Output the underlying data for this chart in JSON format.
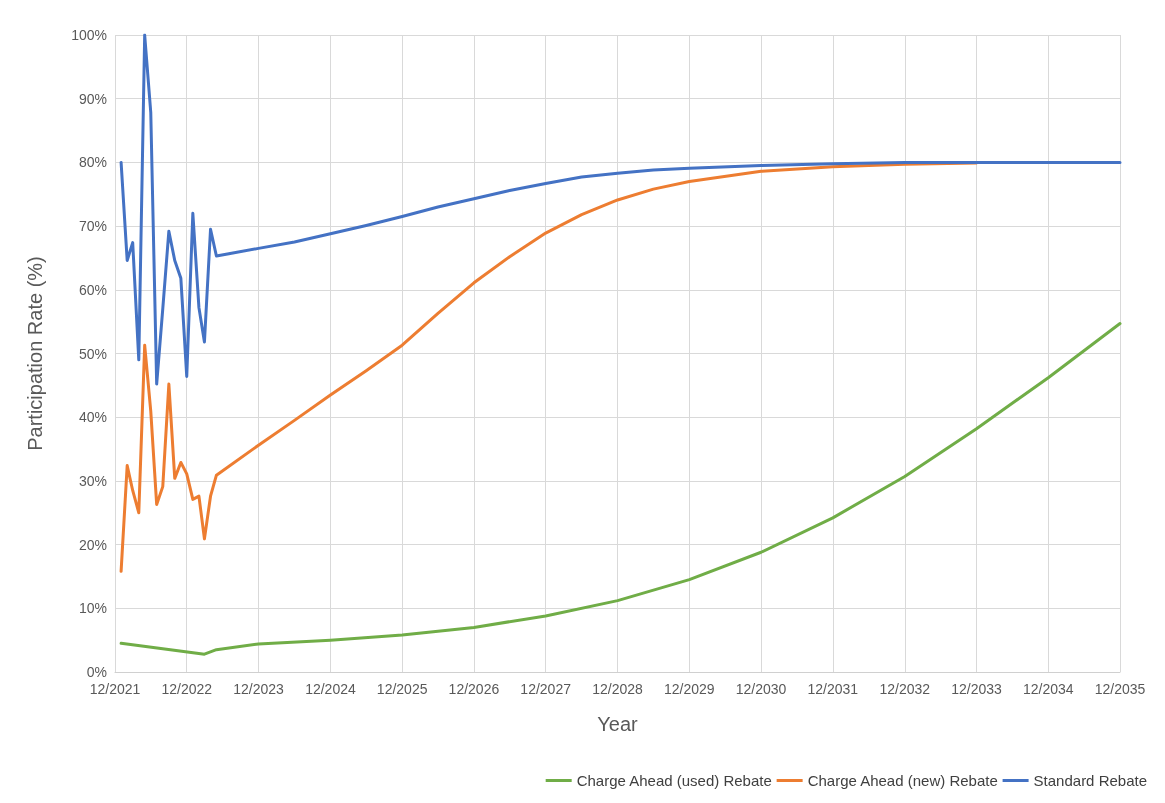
{
  "chart_data": {
    "type": "line",
    "xlabel": "Year",
    "ylabel": "Participation Rate (%)",
    "x": [
      "2022-01",
      "2022-02",
      "2022-03",
      "2022-04",
      "2022-05",
      "2022-06",
      "2022-07",
      "2022-08",
      "2022-09",
      "2022-10",
      "2022-11",
      "2022-12",
      "2023-01",
      "2023-02",
      "2023-03",
      "2023-04",
      "2023-05",
      "2023-12",
      "2024-06",
      "2024-12",
      "2025-06",
      "2025-12",
      "2026-06",
      "2026-12",
      "2027-06",
      "2027-12",
      "2028-06",
      "2028-12",
      "2029-06",
      "2029-12",
      "2030-12",
      "2031-12",
      "2032-12",
      "2033-12",
      "2034-12",
      "2035-12"
    ],
    "series": [
      {
        "name": "Charge Ahead (used) Rebate",
        "color": "#70ad47",
        "x": [
          "2022-01",
          "2023-03",
          "2023-05",
          "2023-12",
          "2024-12",
          "2025-12",
          "2026-12",
          "2027-12",
          "2028-12",
          "2029-12",
          "2030-12",
          "2031-12",
          "2032-12",
          "2033-12",
          "2034-12",
          "2035-12"
        ],
        "values": [
          4.5,
          2.8,
          3.5,
          4.4,
          5.0,
          5.8,
          7.0,
          8.8,
          11.2,
          14.5,
          18.8,
          24.2,
          30.7,
          38.2,
          46.2,
          54.7
        ]
      },
      {
        "name": "Charge Ahead (new) Rebate",
        "color": "#ed7d31",
        "values": [
          15.8,
          32.4,
          28.5,
          25,
          51.3,
          40.9,
          26.3,
          29.1,
          45.2,
          30.4,
          32.9,
          31.1,
          27.1,
          27.6,
          20.9,
          27.6,
          30.9,
          35.6,
          39.5,
          43.5,
          47.3,
          51.3,
          56.3,
          61.1,
          65.2,
          68.9,
          71.8,
          74.1,
          75.8,
          77,
          78.6,
          79.3,
          79.7,
          79.9,
          null,
          null
        ]
      },
      {
        "name": "Standard Rebate",
        "color": "#4472c4",
        "values": [
          80,
          64.6,
          67.4,
          49,
          100,
          87.8,
          45.2,
          57,
          69.2,
          64.6,
          61.8,
          46.4,
          72,
          57.2,
          51.8,
          69.5,
          65.3,
          66.5,
          67.5,
          68.8,
          70.1,
          71.5,
          73,
          74.3,
          75.6,
          76.7,
          77.7,
          78.3,
          78.8,
          79.1,
          79.5,
          79.8,
          80,
          80,
          80,
          80
        ]
      }
    ],
    "xlim": [
      "2021-12",
      "2035-12"
    ],
    "xticks": [
      {
        "value": "2021-12",
        "label": "12/2021"
      },
      {
        "value": "2022-12",
        "label": "12/2022"
      },
      {
        "value": "2023-12",
        "label": "12/2023"
      },
      {
        "value": "2024-12",
        "label": "12/2024"
      },
      {
        "value": "2025-12",
        "label": "12/2025"
      },
      {
        "value": "2026-12",
        "label": "12/2026"
      },
      {
        "value": "2027-12",
        "label": "12/2027"
      },
      {
        "value": "2028-12",
        "label": "12/2028"
      },
      {
        "value": "2029-12",
        "label": "12/2029"
      },
      {
        "value": "2030-12",
        "label": "12/2030"
      },
      {
        "value": "2031-12",
        "label": "12/2031"
      },
      {
        "value": "2032-12",
        "label": "12/2032"
      },
      {
        "value": "2033-12",
        "label": "12/2033"
      },
      {
        "value": "2034-12",
        "label": "12/2034"
      },
      {
        "value": "2035-12",
        "label": "12/2035"
      }
    ],
    "ylim": [
      0,
      100
    ],
    "yticks": [
      {
        "value": 0,
        "label": "0%"
      },
      {
        "value": 10,
        "label": "10%"
      },
      {
        "value": 20,
        "label": "20%"
      },
      {
        "value": 30,
        "label": "30%"
      },
      {
        "value": 40,
        "label": "40%"
      },
      {
        "value": 50,
        "label": "50%"
      },
      {
        "value": 60,
        "label": "60%"
      },
      {
        "value": 70,
        "label": "70%"
      },
      {
        "value": 80,
        "label": "80%"
      },
      {
        "value": 90,
        "label": "90%"
      },
      {
        "value": 100,
        "label": "100%"
      }
    ],
    "grid": true,
    "legend": "bottom right",
    "marker": "none",
    "line_style": "solid"
  }
}
